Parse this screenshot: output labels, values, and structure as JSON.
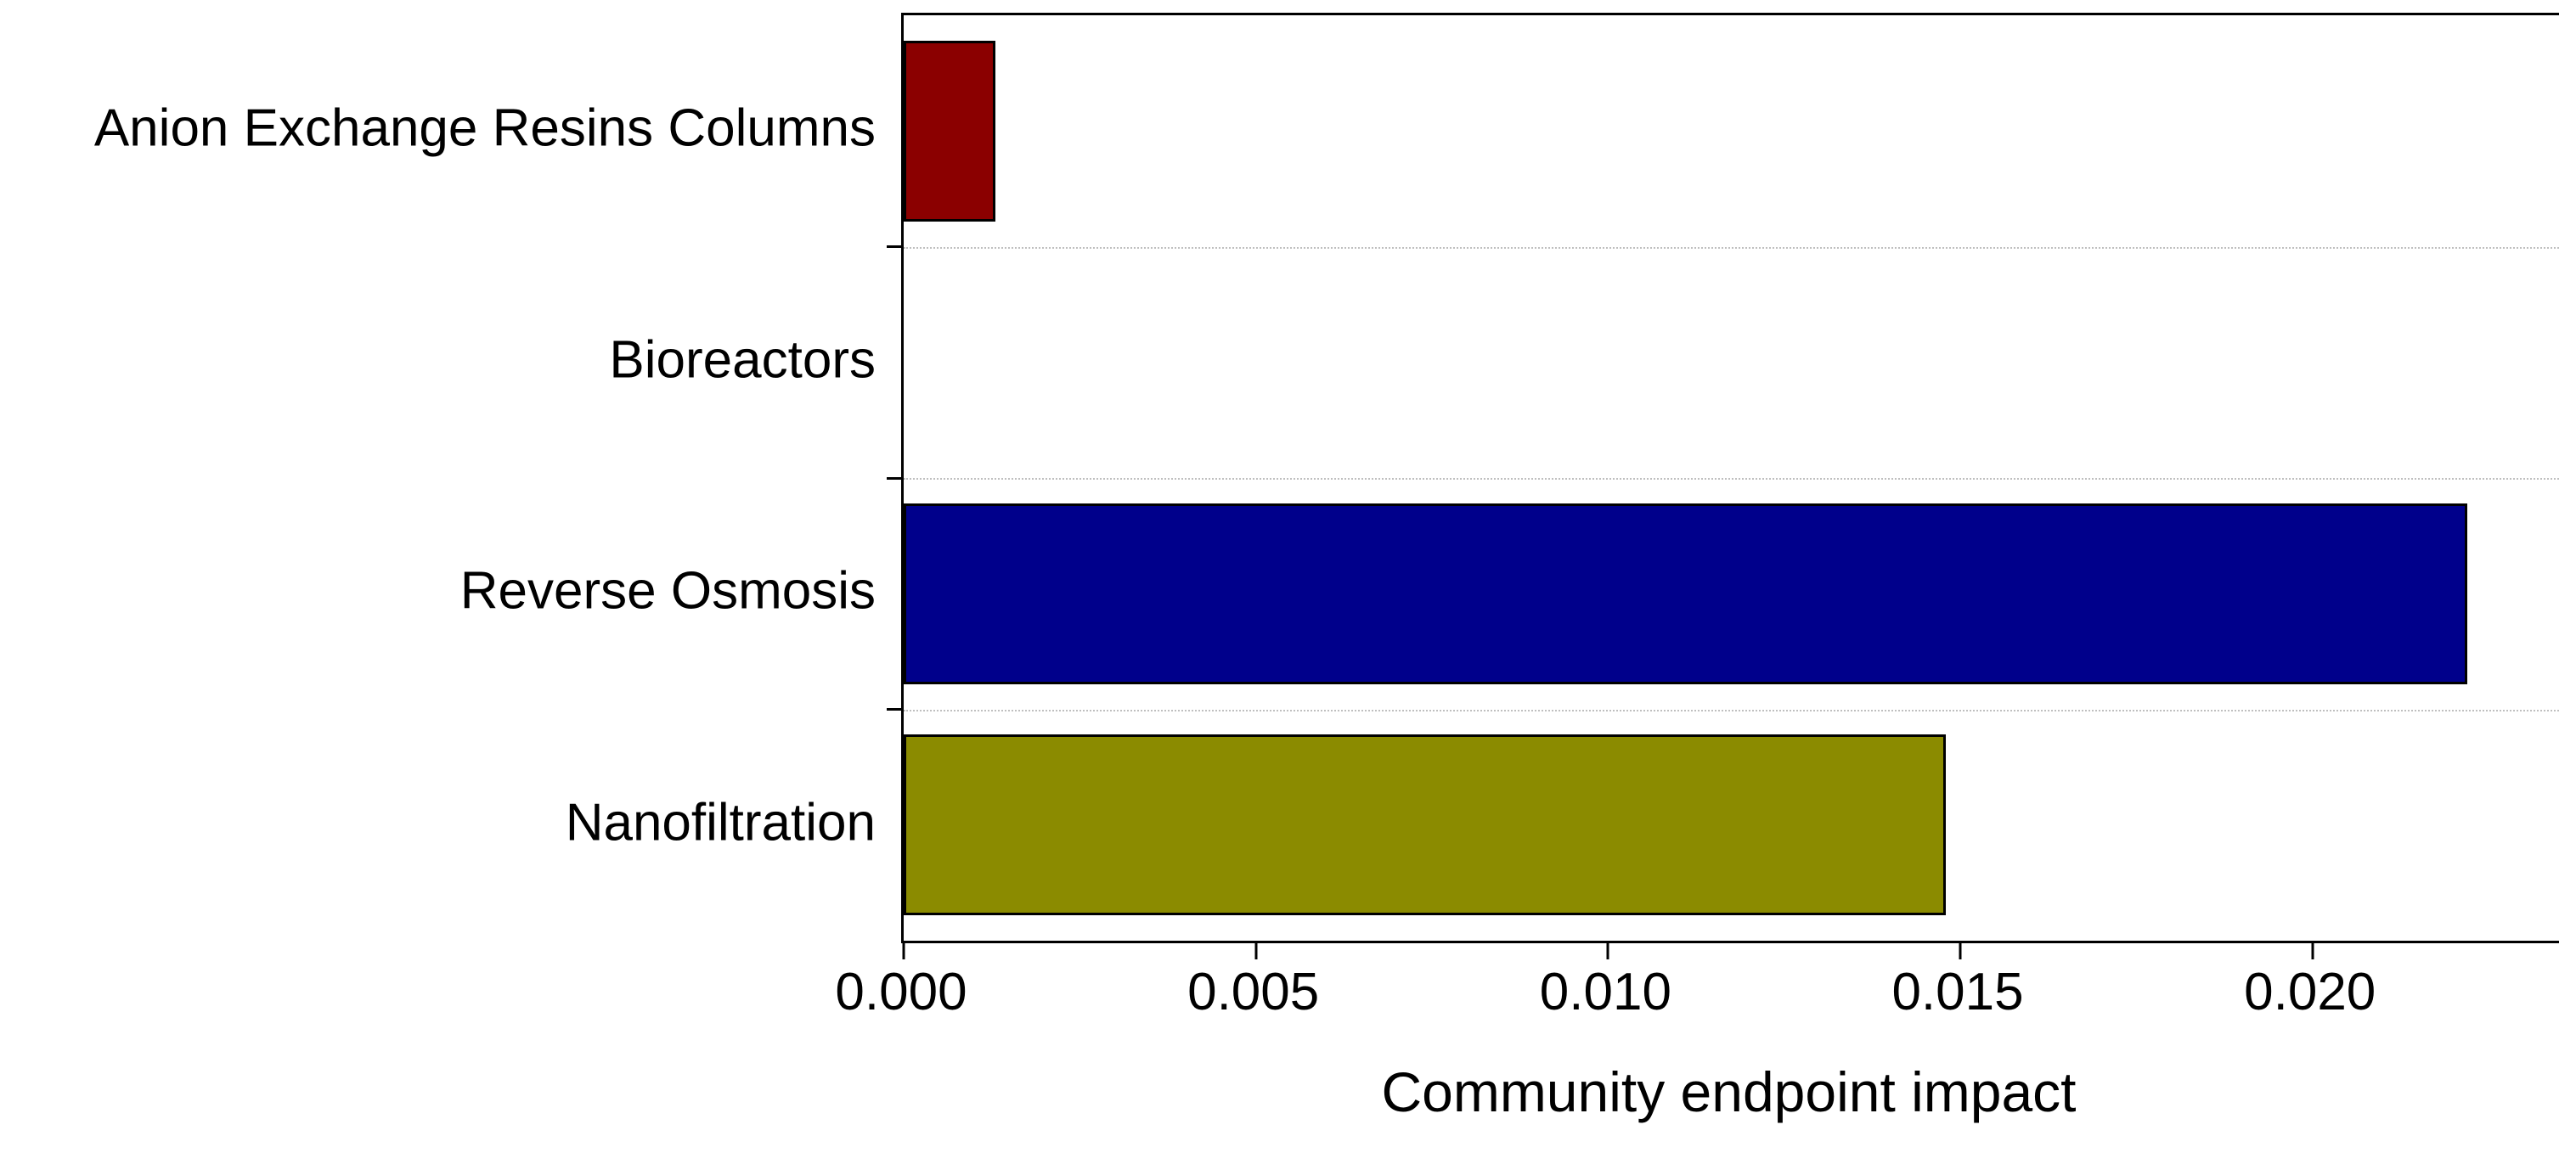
{
  "chart_data": {
    "type": "bar",
    "orientation": "horizontal",
    "title": "",
    "xlabel": "Community endpoint impact",
    "ylabel": "",
    "categories": [
      "Anion Exchange Resins Columns",
      "Bioreactors",
      "Reverse Osmosis",
      "Nanofiltration"
    ],
    "values": [
      0.0013,
      0,
      0.0222,
      0.0148
    ],
    "bar_colors": [
      "#8B0000",
      null,
      "#00008B",
      "#8B8B00"
    ],
    "xlim": [
      0,
      0.0235
    ],
    "xticks": {
      "values": [
        0,
        0.005,
        0.01,
        0.015,
        0.02
      ],
      "labels": [
        "0.000",
        "0.005",
        "0.010",
        "0.015",
        "0.020"
      ]
    },
    "grid": "dotted horizontal separators between category bands",
    "legend": "none",
    "axis_color": "#000000",
    "background": "#FFFFFF"
  }
}
